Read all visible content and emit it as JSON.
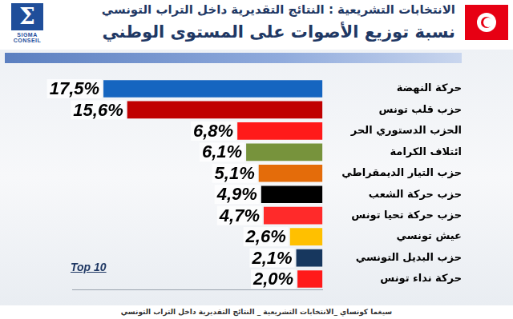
{
  "chart_data": {
    "type": "bar",
    "orientation": "horizontal",
    "title": "الانتخابات التشريعية : النتائج التقديرية داخل التراب التونسي",
    "subtitle": "نسبة توزيع الأصوات على المستوى الوطني",
    "logo": {
      "symbol": "Σ",
      "name": "SIGMA CONSEIL"
    },
    "categories": [
      "حركة النهضة",
      "حزب قلب تونس",
      "الحزب الدستوري الحر",
      "ائتلاف الكرامة",
      "حزب التيار الديمقراطي",
      "حزب حركة الشعب",
      "حزب حركة تحيا تونس",
      "عيش تونسي",
      "حزب البديل التونسي",
      "حركة نداء تونس"
    ],
    "values": [
      17.5,
      15.6,
      6.8,
      6.1,
      5.1,
      4.9,
      4.7,
      2.6,
      2.1,
      2.0
    ],
    "value_labels": [
      "17,5%",
      "15,6%",
      "6,8%",
      "6,1%",
      "5,1%",
      "4,9%",
      "4,7%",
      "2,6%",
      "2,1%",
      "2,0%"
    ],
    "colors": [
      "#1565c0",
      "#c00000",
      "#ff1a1a",
      "#77933c",
      "#e46c0a",
      "#000000",
      "#ff2a2a",
      "#ffc000",
      "#17375e",
      "#ff1a1a"
    ],
    "xlim": [
      0,
      20
    ],
    "grid": false,
    "tick_labels": "y",
    "data_labels": true,
    "annotations": [
      "Top 10"
    ],
    "footer": "سيغما كونساي _الانتخابات التشريعية _ النتائج التقديرية داخل التراب التونسي"
  }
}
